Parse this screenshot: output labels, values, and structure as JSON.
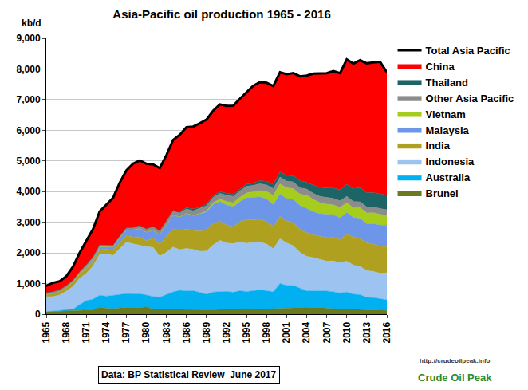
{
  "chart_data": {
    "type": "area",
    "title": "Asia-Pacific oil production 1965 - 2016",
    "y_label": "kb/d",
    "annotations": [
      "Data: BP Statistical Review  June 2017",
      "http://crudeoilpeak.info",
      "Crude Oil Peak"
    ],
    "stacked": true,
    "grid": true,
    "legend": "right",
    "x": [
      1965,
      1966,
      1967,
      1968,
      1969,
      1970,
      1971,
      1972,
      1973,
      1974,
      1975,
      1976,
      1977,
      1978,
      1979,
      1980,
      1981,
      1982,
      1983,
      1984,
      1985,
      1986,
      1987,
      1988,
      1989,
      1990,
      1991,
      1992,
      1993,
      1994,
      1995,
      1996,
      1997,
      1998,
      1999,
      2000,
      2001,
      2002,
      2003,
      2004,
      2005,
      2006,
      2007,
      2008,
      2009,
      2010,
      2011,
      2012,
      2013,
      2014,
      2015,
      2016
    ],
    "xlim": [
      1965,
      2016
    ],
    "xticks": [
      1965,
      1968,
      1971,
      1974,
      1977,
      1980,
      1983,
      1986,
      1989,
      1992,
      1995,
      1998,
      2001,
      2004,
      2007,
      2010,
      2013,
      2016
    ],
    "ylim": [
      0,
      9000
    ],
    "yticks": [
      0,
      {
        "value": 1000,
        "label": "1,000"
      },
      {
        "value": 2000,
        "label": "2,000"
      },
      {
        "value": 3000,
        "label": "3,000"
      },
      {
        "value": 4000,
        "label": "4,000"
      },
      {
        "value": 5000,
        "label": "5,000"
      },
      {
        "value": 6000,
        "label": "6,000"
      },
      {
        "value": 7000,
        "label": "7,000"
      },
      {
        "value": 8000,
        "label": "8,000"
      },
      {
        "value": 9000,
        "label": "9,000"
      }
    ],
    "series": [
      {
        "name": "Brunei",
        "color": "#6b7a1f",
        "type": "area",
        "values": [
          80,
          90,
          95,
          110,
          120,
          139,
          130,
          145,
          231,
          195,
          182,
          206,
          225,
          216,
          217,
          240,
          164,
          162,
          166,
          166,
          153,
          150,
          144,
          147,
          149,
          150,
          156,
          165,
          168,
          175,
          177,
          171,
          168,
          164,
          182,
          193,
          203,
          210,
          214,
          210,
          206,
          221,
          194,
          175,
          168,
          172,
          165,
          159,
          135,
          126,
          127,
          121
        ]
      },
      {
        "name": "Australia",
        "color": "#00b0f0",
        "type": "area",
        "values": [
          6,
          9,
          22,
          38,
          40,
          175,
          312,
          345,
          388,
          392,
          431,
          432,
          444,
          445,
          444,
          387,
          411,
          393,
          469,
          560,
          626,
          607,
          623,
          565,
          502,
          575,
          582,
          579,
          545,
          593,
          561,
          593,
          626,
          602,
          545,
          809,
          733,
          730,
          626,
          547,
          554,
          541,
          562,
          556,
          521,
          553,
          484,
          480,
          408,
          414,
          371,
          345
        ]
      },
      {
        "name": "Indonesia",
        "color": "#9dc3f0",
        "type": "area",
        "values": [
          486,
          474,
          505,
          601,
          742,
          854,
          892,
          1081,
          1338,
          1375,
          1307,
          1503,
          1686,
          1635,
          1591,
          1577,
          1605,
          1339,
          1385,
          1466,
          1325,
          1390,
          1347,
          1342,
          1409,
          1539,
          1669,
          1579,
          1588,
          1589,
          1578,
          1580,
          1557,
          1520,
          1408,
          1456,
          1389,
          1289,
          1176,
          1130,
          1087,
          1017,
          972,
          1006,
          994,
          1003,
          952,
          918,
          882,
          852,
          838,
          881
        ]
      },
      {
        "name": "India",
        "color": "#b0a020",
        "type": "area",
        "values": [
          65,
          96,
          112,
          117,
          137,
          141,
          146,
          148,
          148,
          152,
          170,
          181,
          210,
          229,
          259,
          188,
          305,
          396,
          512,
          596,
          622,
          638,
          617,
          655,
          694,
          701,
          624,
          585,
          550,
          661,
          767,
          740,
          744,
          735,
          726,
          726,
          727,
          753,
          756,
          773,
          738,
          762,
          769,
          768,
          756,
          878,
          916,
          906,
          906,
          894,
          876,
          856
        ]
      },
      {
        "name": "Malaysia",
        "color": "#6d96e8",
        "type": "area",
        "values": [
          3,
          3,
          3,
          5,
          15,
          18,
          70,
          90,
          93,
          81,
          98,
          165,
          183,
          217,
          283,
          283,
          257,
          303,
          387,
          450,
          446,
          503,
          491,
          561,
          583,
          619,
          644,
          658,
          655,
          653,
          720,
          727,
          735,
          735,
          716,
          735,
          720,
          757,
          776,
          793,
          759,
          734,
          755,
          741,
          701,
          716,
          634,
          662,
          621,
          666,
          693,
          703
        ]
      },
      {
        "name": "Vietnam",
        "color": "#a6cc1c",
        "type": "area",
        "values": [
          0,
          0,
          0,
          0,
          0,
          0,
          0,
          0,
          0,
          0,
          0,
          0,
          0,
          0,
          0,
          0,
          0,
          0,
          0,
          0,
          0,
          1,
          3,
          14,
          30,
          51,
          80,
          110,
          127,
          140,
          152,
          176,
          201,
          250,
          296,
          328,
          350,
          354,
          364,
          427,
          398,
          362,
          337,
          317,
          345,
          314,
          317,
          348,
          350,
          355,
          352,
          324
        ]
      },
      {
        "name": "Other Asia Pacific",
        "color": "#8c8c8c",
        "type": "area",
        "values": [
          62,
          62,
          62,
          60,
          58,
          60,
          60,
          60,
          64,
          66,
          63,
          64,
          68,
          85,
          100,
          106,
          115,
          115,
          116,
          117,
          132,
          145,
          150,
          165,
          173,
          177,
          188,
          208,
          210,
          212,
          218,
          213,
          225,
          210,
          225,
          225,
          216,
          222,
          210,
          202,
          200,
          205,
          211,
          212,
          212,
          208,
          209,
          196,
          197,
          192,
          189,
          180
        ]
      },
      {
        "name": "Thailand",
        "color": "#1d6466",
        "type": "area",
        "values": [
          0,
          0,
          0,
          0,
          0,
          0,
          0,
          0,
          0,
          0,
          0,
          0,
          0,
          0,
          0,
          0,
          5,
          15,
          30,
          35,
          43,
          45,
          56,
          50,
          53,
          53,
          66,
          66,
          71,
          69,
          74,
          82,
          103,
          120,
          134,
          170,
          187,
          204,
          236,
          222,
          265,
          298,
          319,
          344,
          362,
          393,
          425,
          460,
          470,
          470,
          475,
          485
        ]
      },
      {
        "name": "China",
        "color": "#ff0000",
        "type": "area",
        "values": [
          227,
          291,
          278,
          306,
          437,
          616,
          785,
          909,
          1090,
          1315,
          1543,
          1739,
          1874,
          2085,
          2122,
          2125,
          2024,
          2045,
          2128,
          2296,
          2505,
          2621,
          2690,
          2730,
          2757,
          2774,
          2835,
          2845,
          2890,
          2939,
          2993,
          3170,
          3211,
          3212,
          3213,
          3252,
          3306,
          3346,
          3401,
          3481,
          3642,
          3711,
          3742,
          3814,
          3805,
          4077,
          4074,
          4155,
          4216,
          4246,
          4309,
          3999
        ]
      },
      {
        "name": "Total Asia Pacific",
        "color": "#000000",
        "type": "line",
        "values": [
          929,
          1025,
          1077,
          1237,
          1549,
          2003,
          2395,
          2778,
          3352,
          3576,
          3794,
          4290,
          4690,
          4912,
          5016,
          4906,
          4886,
          4768,
          5193,
          5686,
          5852,
          6100,
          6121,
          6229,
          6350,
          6639,
          6844,
          6795,
          6804,
          7031,
          7240,
          7452,
          7570,
          7548,
          7445,
          7894,
          7831,
          7865,
          7759,
          7785,
          7849,
          7851,
          7861,
          7933,
          7864,
          8314,
          8176,
          8284,
          8185,
          8215,
          8230,
          7894
        ]
      }
    ]
  }
}
